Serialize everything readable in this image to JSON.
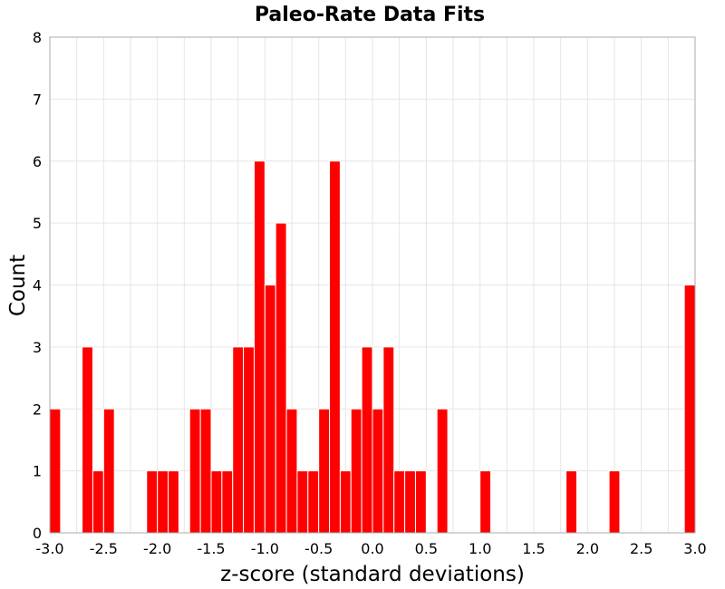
{
  "chart_data": {
    "type": "bar",
    "title": "Paleo-Rate Data Fits",
    "xlabel": "z-score (standard deviations)",
    "ylabel": "Count",
    "xlim": [
      -3.0,
      3.0
    ],
    "ylim": [
      0,
      8
    ],
    "bin_width": 0.1,
    "x_ticks": [
      "-3.0",
      "-2.5",
      "-2.0",
      "-1.5",
      "-1.0",
      "-0.5",
      "0.0",
      "0.5",
      "1.0",
      "1.5",
      "2.0",
      "2.5",
      "3.0"
    ],
    "y_ticks": [
      "0",
      "1",
      "2",
      "3",
      "4",
      "5",
      "6",
      "7",
      "8"
    ],
    "grid": true,
    "bar_color": "#ff0000",
    "bins": [
      {
        "x": -3.0,
        "count": 2
      },
      {
        "x": -2.7,
        "count": 3
      },
      {
        "x": -2.6,
        "count": 1
      },
      {
        "x": -2.5,
        "count": 2
      },
      {
        "x": -2.1,
        "count": 1
      },
      {
        "x": -2.0,
        "count": 1
      },
      {
        "x": -1.9,
        "count": 1
      },
      {
        "x": -1.7,
        "count": 2
      },
      {
        "x": -1.6,
        "count": 2
      },
      {
        "x": -1.5,
        "count": 1
      },
      {
        "x": -1.4,
        "count": 1
      },
      {
        "x": -1.3,
        "count": 3
      },
      {
        "x": -1.2,
        "count": 3
      },
      {
        "x": -1.1,
        "count": 6
      },
      {
        "x": -1.0,
        "count": 4
      },
      {
        "x": -0.9,
        "count": 5
      },
      {
        "x": -0.8,
        "count": 2
      },
      {
        "x": -0.7,
        "count": 1
      },
      {
        "x": -0.6,
        "count": 1
      },
      {
        "x": -0.5,
        "count": 2
      },
      {
        "x": -0.4,
        "count": 6
      },
      {
        "x": -0.3,
        "count": 1
      },
      {
        "x": -0.2,
        "count": 2
      },
      {
        "x": -0.1,
        "count": 3
      },
      {
        "x": 0.0,
        "count": 2
      },
      {
        "x": 0.1,
        "count": 3
      },
      {
        "x": 0.2,
        "count": 1
      },
      {
        "x": 0.3,
        "count": 1
      },
      {
        "x": 0.4,
        "count": 1
      },
      {
        "x": 0.6,
        "count": 2
      },
      {
        "x": 1.0,
        "count": 1
      },
      {
        "x": 1.8,
        "count": 1
      },
      {
        "x": 2.2,
        "count": 1
      },
      {
        "x": 2.9,
        "count": 4
      }
    ]
  }
}
